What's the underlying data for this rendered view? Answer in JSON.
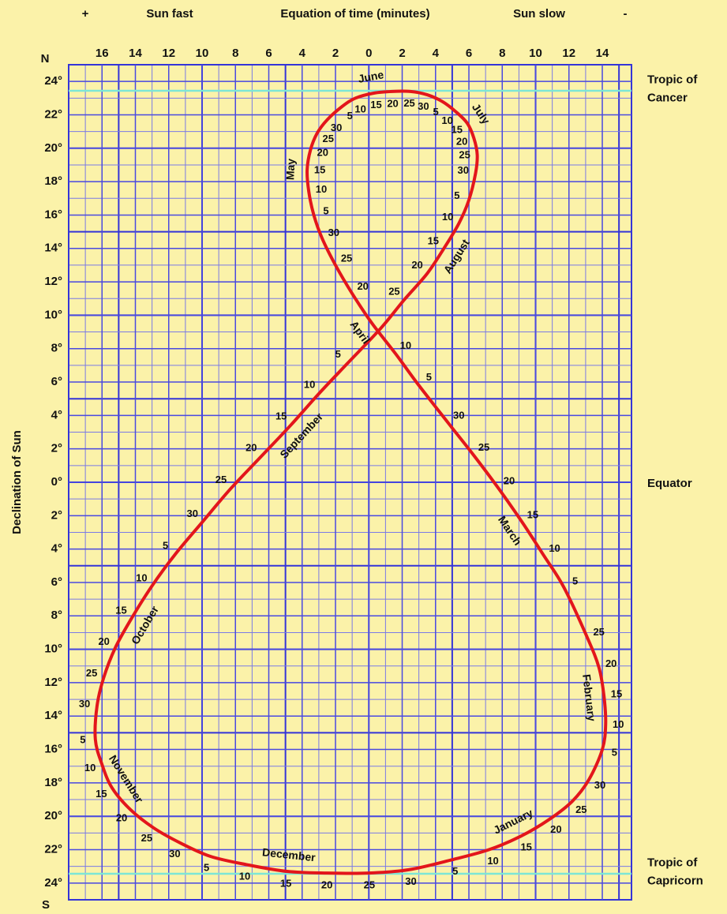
{
  "chart_data": {
    "type": "line",
    "x_label": "Equation of time (minutes)",
    "x_left_label": "Sun fast",
    "x_right_label": "Sun slow",
    "x_left_sign": "+",
    "x_right_sign": "-",
    "y_label": "Declination of Sun",
    "y_top_label": "N",
    "y_bottom_label": "S",
    "xlim": [
      18,
      -15.75
    ],
    "ylim": [
      -25,
      25
    ],
    "xticks": [
      16,
      14,
      12,
      10,
      8,
      6,
      4,
      2,
      0,
      {
        "value": -2,
        "label": "2"
      },
      {
        "value": -4,
        "label": "4"
      },
      {
        "value": -6,
        "label": "6"
      },
      {
        "value": -8,
        "label": "8"
      },
      {
        "value": -10,
        "label": "10"
      },
      {
        "value": -12,
        "label": "12"
      },
      {
        "value": -14,
        "label": "14"
      }
    ],
    "yticks": [
      {
        "value": 24,
        "label": "24°"
      },
      {
        "value": 22,
        "label": "22°"
      },
      {
        "value": 20,
        "label": "20°"
      },
      {
        "value": 18,
        "label": "18°"
      },
      {
        "value": 16,
        "label": "16°"
      },
      {
        "value": 14,
        "label": "14°"
      },
      {
        "value": 12,
        "label": "12°"
      },
      {
        "value": 10,
        "label": "10°"
      },
      {
        "value": 8,
        "label": "8°"
      },
      {
        "value": 6,
        "label": "6°"
      },
      {
        "value": 4,
        "label": "4°"
      },
      {
        "value": 2,
        "label": "2°"
      },
      {
        "value": 0,
        "label": "0°"
      },
      {
        "value": -2,
        "label": "2°"
      },
      {
        "value": -4,
        "label": "4°"
      },
      {
        "value": -6,
        "label": "6°"
      },
      {
        "value": -8,
        "label": "8°"
      },
      {
        "value": -10,
        "label": "10°"
      },
      {
        "value": -12,
        "label": "12°"
      },
      {
        "value": -14,
        "label": "14°"
      },
      {
        "value": -16,
        "label": "16°"
      },
      {
        "value": -18,
        "label": "18°"
      },
      {
        "value": -20,
        "label": "20°"
      },
      {
        "value": -22,
        "label": "22°"
      },
      {
        "value": -24,
        "label": "24°"
      }
    ],
    "grid": true,
    "color": "#e3161b",
    "reference_lines": [
      {
        "value": 23.44,
        "label": [
          "Tropic of",
          "Cancer"
        ],
        "color": "#7de6d6"
      },
      {
        "value": 0,
        "label": [
          "Equator"
        ]
      },
      {
        "value": -23.44,
        "label": [
          "Tropic of",
          "Capricorn"
        ],
        "color": "#7de6d6"
      }
    ],
    "series": [
      {
        "name": "January",
        "days": [
          5,
          10,
          15,
          20,
          25,
          30
        ],
        "x": [
          -5.0,
          -7.2,
          -9.1,
          -10.8,
          -12.2,
          -13.2
        ],
        "values": [
          -22.6,
          -22.0,
          -21.2,
          -20.2,
          -19.1,
          -17.8
        ]
      },
      {
        "name": "February",
        "days": [
          5,
          10,
          15,
          20,
          25
        ],
        "x": [
          -14.0,
          -14.2,
          -14.1,
          -13.8,
          -13.1
        ],
        "values": [
          -16.0,
          -14.5,
          -12.8,
          -11.1,
          -9.3
        ]
      },
      {
        "name": "March",
        "days": [
          5,
          10,
          15,
          20,
          25,
          30
        ],
        "x": [
          -11.7,
          -10.5,
          -9.2,
          -7.8,
          -6.3,
          -4.8
        ],
        "values": [
          -6.3,
          -4.4,
          -2.4,
          -0.4,
          1.6,
          3.5
        ]
      },
      {
        "name": "April",
        "days": [
          5,
          10,
          null,
          20,
          25,
          30
        ],
        "x": [
          -3.0,
          -1.6,
          -0.2,
          1.0,
          2.0,
          2.8
        ],
        "values": [
          5.8,
          7.7,
          9.5,
          11.3,
          13.0,
          14.6
        ]
      },
      {
        "name": "May",
        "days": [
          5,
          10,
          15,
          20,
          25,
          30
        ],
        "x": [
          3.3,
          3.6,
          3.7,
          3.5,
          3.1,
          2.5
        ],
        "values": [
          16.0,
          17.4,
          18.7,
          19.9,
          20.9,
          21.7
        ]
      },
      {
        "name": "June",
        "days": [
          5,
          10,
          15,
          20,
          25,
          30
        ],
        "x": [
          1.6,
          0.8,
          -0.3,
          -1.4,
          -2.5,
          -3.5
        ],
        "values": [
          22.5,
          23.0,
          23.3,
          23.4,
          23.4,
          23.2
        ]
      },
      {
        "name": "July",
        "days": [
          5,
          10,
          15,
          20,
          25,
          30
        ],
        "x": [
          -4.4,
          -5.2,
          -5.9,
          -6.3,
          -6.5,
          -6.4
        ],
        "values": [
          22.8,
          22.2,
          21.5,
          20.6,
          19.6,
          18.5
        ]
      },
      {
        "name": "August",
        "days": [
          5,
          10,
          15,
          20,
          25,
          null
        ],
        "x": [
          -6.0,
          -5.4,
          -4.5,
          -3.5,
          -2.1,
          -0.7
        ],
        "values": [
          16.9,
          15.5,
          14.0,
          12.5,
          10.9,
          9.2
        ]
      },
      {
        "name": "September",
        "days": [
          5,
          10,
          15,
          20,
          25,
          30
        ],
        "x": [
          1.3,
          3.0,
          4.7,
          6.5,
          8.3,
          10.0
        ],
        "values": [
          7.1,
          5.3,
          3.4,
          1.5,
          -0.4,
          -2.4
        ]
      },
      {
        "name": "October",
        "days": [
          5,
          10,
          15,
          20,
          25,
          30
        ],
        "x": [
          11.6,
          13.0,
          14.2,
          15.2,
          15.9,
          16.3
        ],
        "values": [
          -4.3,
          -6.2,
          -8.1,
          -9.9,
          -11.7,
          -13.4
        ]
      },
      {
        "name": "November",
        "days": [
          5,
          10,
          15,
          20,
          25,
          30
        ],
        "x": [
          16.4,
          16.0,
          15.4,
          14.3,
          12.9,
          11.3
        ],
        "values": [
          -15.4,
          -16.9,
          -18.3,
          -19.6,
          -20.7,
          -21.6
        ]
      },
      {
        "name": "December",
        "days": [
          5,
          10,
          15,
          20,
          25,
          30
        ],
        "x": [
          9.5,
          7.3,
          4.9,
          2.5,
          0.0,
          -2.4
        ],
        "values": [
          -22.4,
          -22.9,
          -23.3,
          -23.4,
          -23.4,
          -23.2
        ]
      }
    ]
  }
}
